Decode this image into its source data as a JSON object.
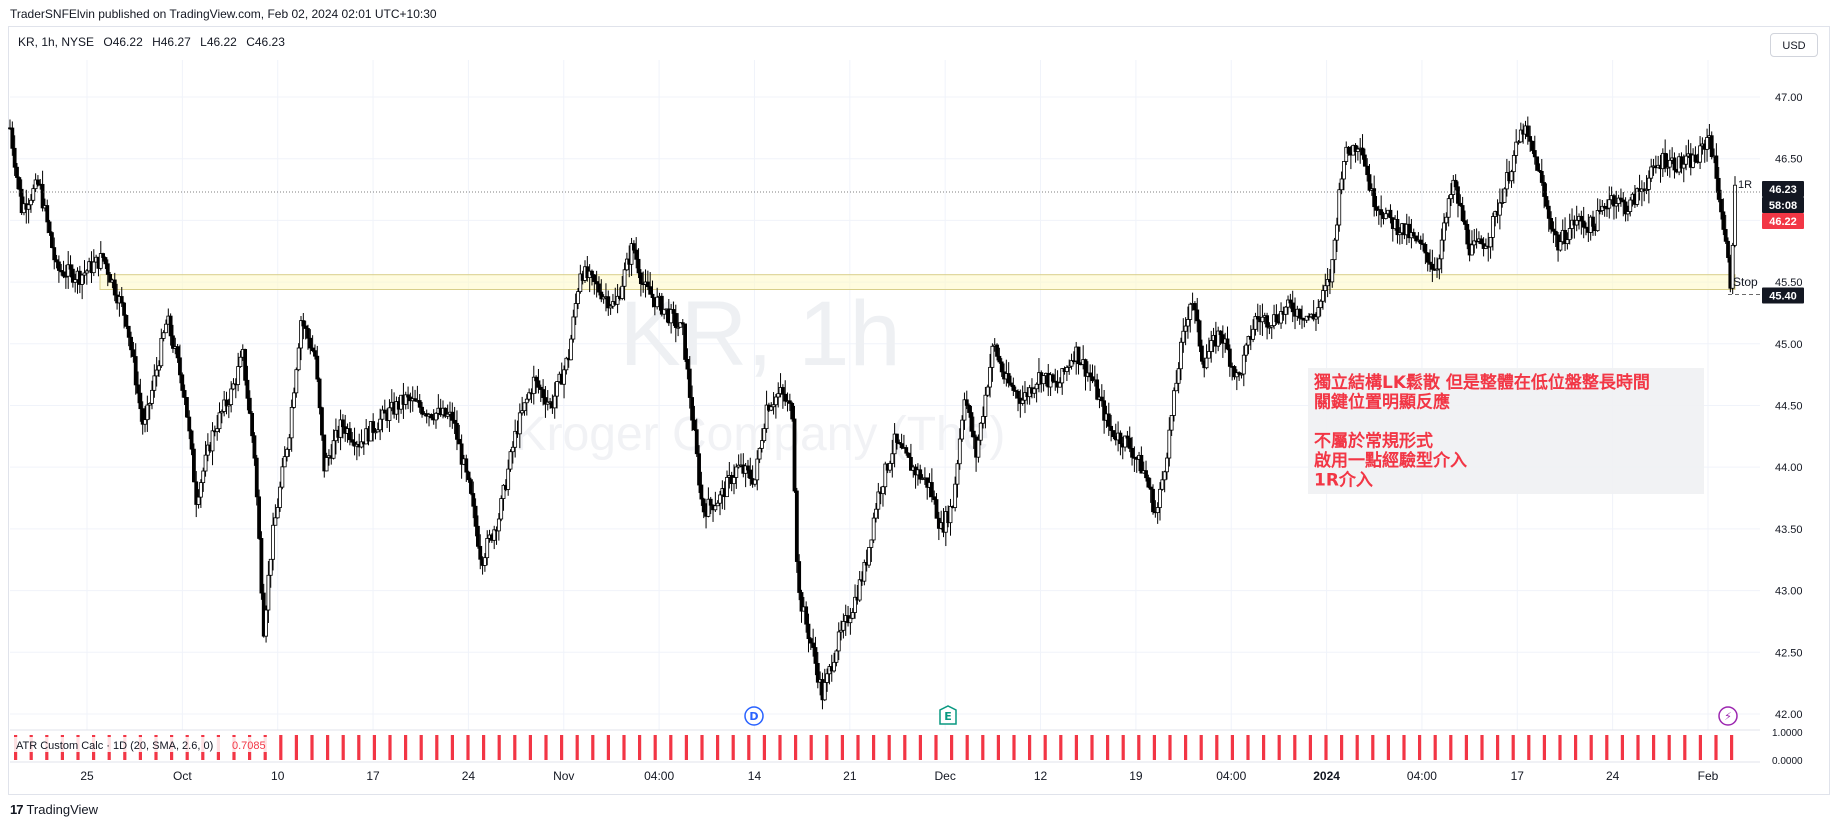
{
  "header": {
    "publisher_line": "TraderSNFElvin published on TradingView.com, Feb 02, 2024 02:01 UTC+10:30"
  },
  "legend": {
    "symbol": "KR, 1h, NYSE",
    "open": "O46.22",
    "high": "H46.27",
    "low": "L46.22",
    "close": "C46.23"
  },
  "currency_button": "USD",
  "watermark": {
    "line1": "KR, 1h",
    "line2": "Kroger Company (The)"
  },
  "annotation": {
    "lines": [
      "獨立結構LK鬆散 但是整體在低位盤整長時間",
      "關鍵位置明顯反應",
      "",
      "不屬於常規形式",
      "啟用一點經驗型介入",
      "1R介入"
    ]
  },
  "price_labels": {
    "last_price": "46.23",
    "countdown": "58:08",
    "bid": "46.22",
    "stop_price": "45.40",
    "r_label": "1R",
    "stop_label": "Stop"
  },
  "indicator": {
    "label": "ATR Custom Calc · 1D (20, SMA, 2.6, 0)",
    "value": "0.7085",
    "axis_ticks": [
      "1.0000",
      "0.0000"
    ]
  },
  "event_markers": [
    {
      "letter": "D",
      "x_label": "Nov 10 area",
      "color": "#2962ff"
    },
    {
      "letter": "E",
      "x_label": "Dec area",
      "color": "#089981"
    },
    {
      "letter": "⚡",
      "x_label": "Feb area",
      "color": "#9c27b0"
    }
  ],
  "branding": "TradingView",
  "chart_data": {
    "type": "candlestick",
    "symbol": "KR",
    "interval": "1h",
    "y_ticks": [
      "47.00",
      "46.50",
      "46.00",
      "45.50",
      "45.00",
      "44.50",
      "44.00",
      "43.50",
      "43.00",
      "42.50",
      "42.00"
    ],
    "ylim": [
      41.87,
      47.3
    ],
    "x_ticks": [
      "25",
      "Oct",
      "10",
      "17",
      "24",
      "Nov",
      "04:00",
      "14",
      "21",
      "Dec",
      "12",
      "19",
      "04:00",
      "2024",
      "04:00",
      "17",
      "24",
      "Feb"
    ],
    "support_zone": [
      45.44,
      45.56
    ],
    "stop_level": 45.4,
    "target_level": 46.23,
    "price_path": [
      [
        0,
        46.75
      ],
      [
        10,
        46.1
      ],
      [
        25,
        46.3
      ],
      [
        40,
        45.6
      ],
      [
        60,
        45.55
      ],
      [
        80,
        45.7
      ],
      [
        100,
        45.2
      ],
      [
        115,
        44.3
      ],
      [
        135,
        45.2
      ],
      [
        150,
        44.6
      ],
      [
        160,
        43.75
      ],
      [
        175,
        44.3
      ],
      [
        190,
        44.6
      ],
      [
        200,
        44.9
      ],
      [
        210,
        44.1
      ],
      [
        218,
        42.7
      ],
      [
        225,
        43.4
      ],
      [
        240,
        44.3
      ],
      [
        250,
        45.2
      ],
      [
        262,
        44.9
      ],
      [
        270,
        44.0
      ],
      [
        285,
        44.35
      ],
      [
        300,
        44.2
      ],
      [
        320,
        44.4
      ],
      [
        340,
        44.55
      ],
      [
        360,
        44.45
      ],
      [
        380,
        44.4
      ],
      [
        395,
        43.8
      ],
      [
        405,
        43.25
      ],
      [
        420,
        43.6
      ],
      [
        435,
        44.3
      ],
      [
        450,
        44.7
      ],
      [
        465,
        44.5
      ],
      [
        480,
        44.9
      ],
      [
        490,
        45.6
      ],
      [
        505,
        45.45
      ],
      [
        520,
        45.3
      ],
      [
        535,
        45.8
      ],
      [
        545,
        45.45
      ],
      [
        560,
        45.3
      ],
      [
        578,
        45.1
      ],
      [
        585,
        44.5
      ],
      [
        595,
        43.65
      ],
      [
        610,
        43.75
      ],
      [
        625,
        44.0
      ],
      [
        640,
        43.9
      ],
      [
        650,
        44.5
      ],
      [
        662,
        44.6
      ],
      [
        672,
        44.45
      ],
      [
        677,
        43.0
      ],
      [
        690,
        42.5
      ],
      [
        698,
        42.15
      ],
      [
        710,
        42.55
      ],
      [
        725,
        42.9
      ],
      [
        735,
        43.2
      ],
      [
        745,
        43.75
      ],
      [
        760,
        44.2
      ],
      [
        775,
        44.0
      ],
      [
        790,
        43.85
      ],
      [
        800,
        43.5
      ],
      [
        810,
        43.7
      ],
      [
        820,
        44.6
      ],
      [
        830,
        44.1
      ],
      [
        845,
        45.0
      ],
      [
        855,
        44.7
      ],
      [
        870,
        44.55
      ],
      [
        885,
        44.75
      ],
      [
        900,
        44.65
      ],
      [
        915,
        44.95
      ],
      [
        930,
        44.7
      ],
      [
        945,
        44.3
      ],
      [
        960,
        44.2
      ],
      [
        975,
        43.95
      ],
      [
        985,
        43.6
      ],
      [
        995,
        44.2
      ],
      [
        1005,
        44.9
      ],
      [
        1015,
        45.4
      ],
      [
        1025,
        44.85
      ],
      [
        1040,
        45.1
      ],
      [
        1055,
        44.7
      ],
      [
        1070,
        45.2
      ],
      [
        1085,
        45.2
      ],
      [
        1100,
        45.3
      ],
      [
        1120,
        45.2
      ],
      [
        1135,
        45.55
      ],
      [
        1145,
        46.5
      ],
      [
        1160,
        46.65
      ],
      [
        1170,
        46.2
      ],
      [
        1185,
        46.0
      ],
      [
        1200,
        45.9
      ],
      [
        1215,
        45.75
      ],
      [
        1225,
        45.6
      ],
      [
        1240,
        46.3
      ],
      [
        1255,
        45.75
      ],
      [
        1270,
        45.85
      ],
      [
        1285,
        46.3
      ],
      [
        1300,
        46.75
      ],
      [
        1312,
        46.45
      ],
      [
        1320,
        46.1
      ],
      [
        1330,
        45.8
      ],
      [
        1345,
        46.0
      ],
      [
        1360,
        45.95
      ],
      [
        1375,
        46.2
      ],
      [
        1390,
        46.1
      ],
      [
        1405,
        46.3
      ],
      [
        1420,
        46.5
      ],
      [
        1435,
        46.45
      ],
      [
        1450,
        46.5
      ],
      [
        1460,
        46.7
      ],
      [
        1470,
        46.1
      ],
      [
        1478,
        45.5
      ],
      [
        1482,
        46.23
      ]
    ]
  }
}
